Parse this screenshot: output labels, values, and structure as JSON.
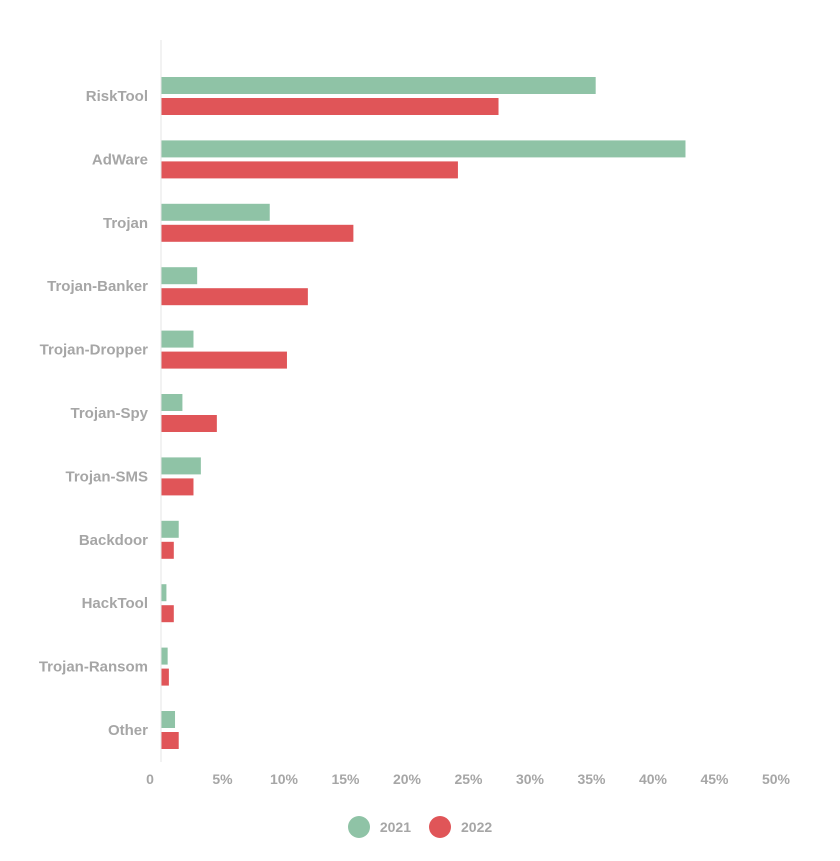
{
  "chart_data": {
    "type": "bar",
    "orientation": "horizontal",
    "categories": [
      "RiskTool",
      "AdWare",
      "Trojan",
      "Trojan-Banker",
      "Trojan-Dropper",
      "Trojan-Spy",
      "Trojan-SMS",
      "Backdoor",
      "HackTool",
      "Trojan-Ransom",
      "Other"
    ],
    "series": [
      {
        "name": "2021",
        "color": "#8fc3a6",
        "values": [
          35.3,
          42.6,
          8.8,
          2.9,
          2.6,
          1.7,
          3.2,
          1.4,
          0.4,
          0.5,
          1.1
        ]
      },
      {
        "name": "2022",
        "color": "#e05558",
        "values": [
          27.4,
          24.1,
          15.6,
          11.9,
          10.2,
          4.5,
          2.6,
          1.0,
          1.0,
          0.6,
          1.4
        ]
      }
    ],
    "xlim": [
      0,
      50
    ],
    "xticks": [
      "0",
      "5%",
      "10%",
      "15%",
      "20%",
      "25%",
      "30%",
      "35%",
      "40%",
      "45%",
      "50%"
    ],
    "xlabel": "",
    "ylabel": "",
    "grid": false,
    "legend_position": "bottom"
  }
}
